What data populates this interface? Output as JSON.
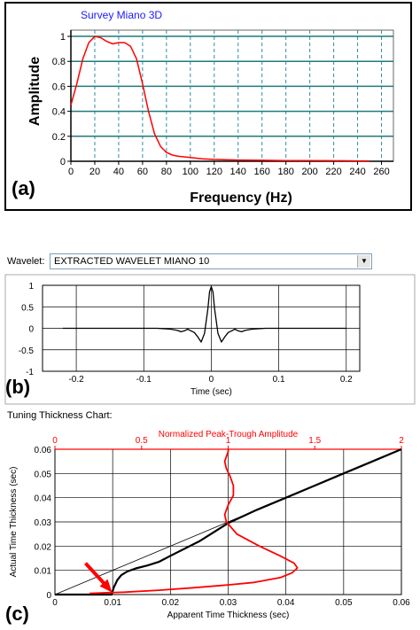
{
  "chart_data": [
    {
      "id": "a",
      "type": "line",
      "panel_label": "(a)",
      "title": "Survey Miano 3D",
      "xlabel": "Frequency (Hz)",
      "ylabel": "Amplitude",
      "xlim": [
        0,
        270
      ],
      "ylim": [
        0,
        1.05
      ],
      "xticks": [
        0,
        20,
        40,
        60,
        80,
        100,
        120,
        140,
        160,
        180,
        200,
        220,
        240,
        260
      ],
      "yticks": [
        0,
        0.2,
        0.4,
        0.6,
        0.8,
        1
      ],
      "grid": true,
      "colors": {
        "line": "#ff0000",
        "grid_h": "#1f7a7a",
        "grid_v": "#2e8fa0",
        "title": "#1a1aff"
      },
      "series": [
        {
          "x": [
            0,
            5,
            10,
            15,
            20,
            25,
            30,
            35,
            40,
            45,
            50,
            55,
            60,
            65,
            70,
            75,
            80,
            85,
            90,
            100,
            110,
            120,
            140,
            160,
            180,
            200,
            220,
            240,
            250
          ],
          "y": [
            0.45,
            0.62,
            0.82,
            0.95,
            1.0,
            0.99,
            0.96,
            0.94,
            0.95,
            0.95,
            0.92,
            0.82,
            0.62,
            0.4,
            0.22,
            0.12,
            0.07,
            0.05,
            0.04,
            0.03,
            0.02,
            0.015,
            0.01,
            0.008,
            0.006,
            0.005,
            0.004,
            0.003,
            0.003
          ]
        }
      ]
    },
    {
      "id": "b",
      "type": "line",
      "panel_label": "(b)",
      "wavelet_label": "Wavelet:",
      "wavelet_name": "EXTRACTED WAVELET MIANO 10",
      "xlabel": "Time (sec)",
      "ylabel": "",
      "xlim": [
        -0.25,
        0.22
      ],
      "ylim": [
        -1,
        1
      ],
      "xticks": [
        -0.2,
        -0.1,
        0,
        0.1,
        0.2
      ],
      "xtick_labels": [
        "-0.2",
        "-0.1",
        "0",
        "0.1",
        "0.2"
      ],
      "yticks": [
        -1,
        -0.5,
        0,
        0.5,
        1
      ],
      "ytick_labels": [
        "-1",
        "-0.5",
        "0",
        "0.5",
        "1"
      ],
      "grid": true,
      "colors": {
        "line": "#000000",
        "grid": "#000000"
      },
      "series": [
        {
          "x": [
            -0.22,
            -0.08,
            -0.06,
            -0.05,
            -0.045,
            -0.04,
            -0.035,
            -0.03,
            -0.025,
            -0.02,
            -0.015,
            -0.01,
            -0.005,
            -0.0025,
            0,
            0.0025,
            0.005,
            0.01,
            0.015,
            0.02,
            0.025,
            0.03,
            0.035,
            0.04,
            0.045,
            0.05,
            0.06,
            0.08,
            0.2
          ],
          "y": [
            0,
            0,
            -0.02,
            -0.05,
            -0.08,
            -0.06,
            -0.02,
            -0.06,
            -0.1,
            -0.2,
            -0.32,
            -0.12,
            0.45,
            0.85,
            0.97,
            0.85,
            0.45,
            -0.12,
            -0.32,
            -0.2,
            -0.1,
            -0.06,
            -0.02,
            -0.06,
            -0.08,
            -0.05,
            -0.02,
            0,
            0
          ]
        }
      ]
    },
    {
      "id": "c",
      "type": "line",
      "panel_label": "(c)",
      "title": "Tuning Thickness Chart:",
      "top_axis_label": "Normalized Peak-Trough Amplitude",
      "xlabel": "Apparent Time Thickness (sec)",
      "ylabel": "Actual Time Thickness (sec)",
      "xlim": [
        0,
        0.06
      ],
      "ylim": [
        0,
        0.06
      ],
      "top_xlim": [
        0,
        2
      ],
      "xticks": [
        0,
        0.01,
        0.02,
        0.03,
        0.04,
        0.05,
        0.06
      ],
      "xtick_labels": [
        "0",
        "0.01",
        "0.02",
        "0.03",
        "0.04",
        "0.05",
        "0.06"
      ],
      "yticks": [
        0,
        0.01,
        0.02,
        0.03,
        0.04,
        0.05,
        0.06
      ],
      "ytick_labels": [
        "0",
        "0.01",
        "0.02",
        "0.03",
        "0.04",
        "0.05",
        "0.06"
      ],
      "top_xticks": [
        0,
        0.5,
        1,
        1.5,
        2
      ],
      "top_xtick_labels": [
        "0",
        "0.5",
        "1",
        "1.5",
        "2"
      ],
      "grid": true,
      "colors": {
        "black": "#000000",
        "red": "#ff0000"
      },
      "series": [
        {
          "name": "apparent-thickness",
          "color": "#000000",
          "x": [
            0,
            0.0098,
            0.0102,
            0.0108,
            0.0115,
            0.0125,
            0.014,
            0.016,
            0.018,
            0.02,
            0.025,
            0.03,
            0.035,
            0.04,
            0.045,
            0.05,
            0.055,
            0.06
          ],
          "y": [
            0,
            0,
            0.003,
            0.006,
            0.008,
            0.0095,
            0.0108,
            0.012,
            0.0135,
            0.016,
            0.022,
            0.0295,
            0.035,
            0.04,
            0.045,
            0.05,
            0.055,
            0.06
          ]
        },
        {
          "name": "reference-1to1",
          "color": "#000000",
          "x": [
            0,
            0.06
          ],
          "y": [
            0,
            0.06
          ]
        },
        {
          "name": "amplitude",
          "color": "#ff0000",
          "axis": "top",
          "x": [
            0.2,
            0.4,
            0.6,
            0.8,
            1.0,
            1.15,
            1.3,
            1.37,
            1.4,
            1.38,
            1.3,
            1.18,
            1.05,
            0.99,
            0.98,
            1.0,
            1.03,
            1.03,
            1.01,
            0.99,
            0.98,
            0.99,
            1.0,
            1.0
          ],
          "y": [
            0.0005,
            0.001,
            0.0018,
            0.0028,
            0.004,
            0.005,
            0.007,
            0.009,
            0.011,
            0.013,
            0.016,
            0.02,
            0.025,
            0.03,
            0.033,
            0.037,
            0.041,
            0.045,
            0.049,
            0.052,
            0.055,
            0.057,
            0.059,
            0.06
          ]
        }
      ],
      "annotation": {
        "type": "arrow",
        "color": "#ff0000",
        "points_to": {
          "x": 0.0102,
          "y": 0.0005
        }
      }
    }
  ]
}
